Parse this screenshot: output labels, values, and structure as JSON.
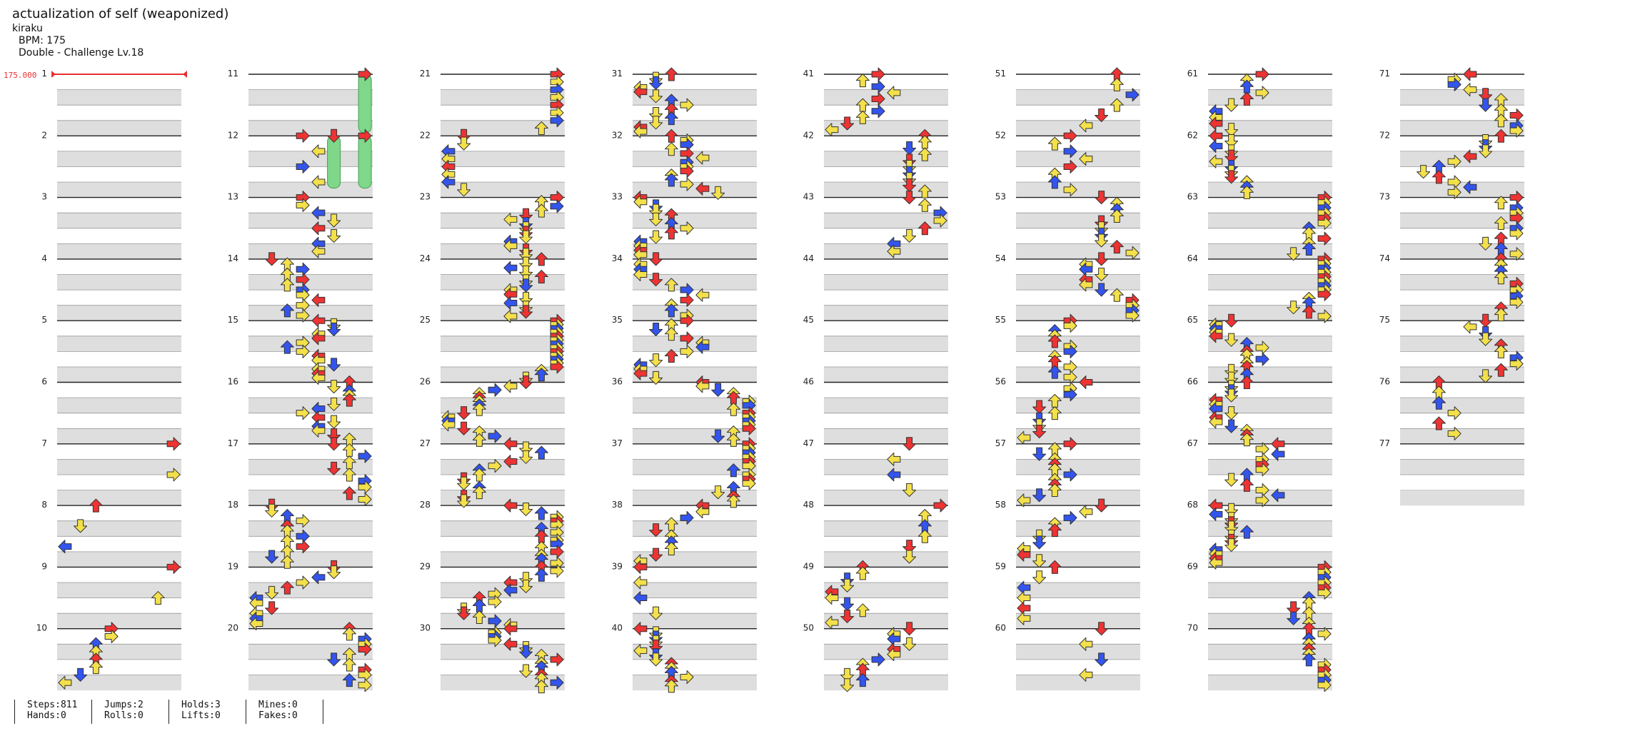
{
  "song": {
    "title": "actualization of self (weaponized)",
    "artist": "kiraku",
    "bpm_text": "BPM: 175",
    "difficulty_text": "Double - Challenge Lv.18",
    "bpm_marker": "175.000"
  },
  "measure_numbers": [
    "1",
    "2",
    "3",
    "4",
    "5",
    "6",
    "7",
    "8",
    "9",
    "10",
    "11",
    "12",
    "13",
    "14",
    "15",
    "16",
    "17",
    "18",
    "19",
    "20",
    "21",
    "22",
    "23",
    "24",
    "25",
    "26",
    "27",
    "28",
    "29",
    "30",
    "31",
    "32",
    "33",
    "34",
    "35",
    "36",
    "37",
    "38",
    "39",
    "40",
    "41",
    "42",
    "43",
    "44",
    "45",
    "46",
    "47",
    "48",
    "49",
    "50",
    "51",
    "52",
    "53",
    "54",
    "55",
    "56",
    "57",
    "58",
    "59",
    "60",
    "61",
    "62",
    "63",
    "64",
    "65",
    "66",
    "67",
    "68",
    "69",
    "70",
    "71",
    "72",
    "73",
    "74",
    "75",
    "76",
    "77"
  ],
  "stats": {
    "steps": "Steps:811",
    "hands": "Hands:0",
    "jumps": "Jumps:2",
    "rolls": "Rolls:0",
    "holds": "Holds:3",
    "lifts": "Lifts:0",
    "mines": "Mines:0",
    "fakes": "Fakes:0"
  },
  "colors": {
    "quarter": "#ee3333",
    "eighth": "#3355ee",
    "sixteenth": "#f3e04a",
    "twelfth": "#aa33ee",
    "hold": "#7fd88a",
    "band": "#dedede",
    "bpm": "#e83030"
  },
  "icons": [
    "left-arrow-icon",
    "down-arrow-icon",
    "up-arrow-icon",
    "right-arrow-icon",
    "hold-bar-icon"
  ]
}
